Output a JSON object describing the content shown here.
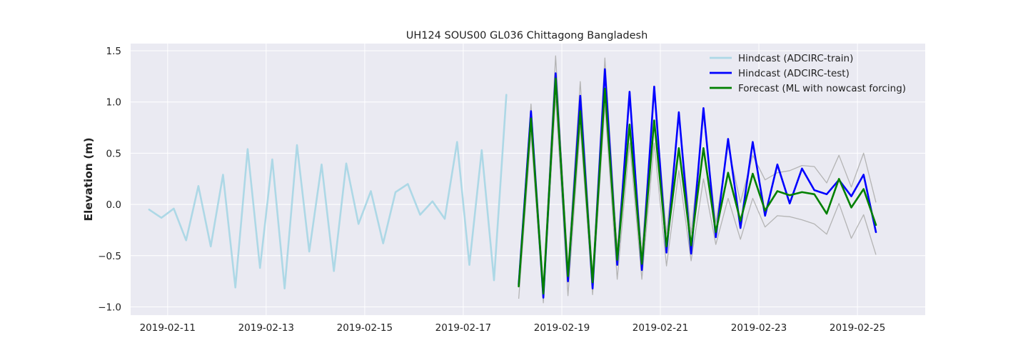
{
  "chart_data": {
    "type": "line",
    "title": "UH124 SOUS00 GL036 Chittagong Bangladesh",
    "xlabel": "",
    "ylabel": "Elevation (m)",
    "xlim": [
      "2019-02-10 06:00",
      "2019-02-26 09:00"
    ],
    "ylim": [
      -1.08,
      1.57
    ],
    "x_ticks": [
      "2019-02-11",
      "2019-02-13",
      "2019-02-15",
      "2019-02-17",
      "2019-02-19",
      "2019-02-21",
      "2019-02-23",
      "2019-02-25"
    ],
    "y_ticks": [
      -1.0,
      -0.5,
      0.0,
      0.5,
      1.0,
      1.5
    ],
    "y_tick_labels": [
      "−1.0",
      "−0.5",
      "0.0",
      "0.5",
      "1.0",
      "1.5"
    ],
    "grid": true,
    "legend_position": "top-right",
    "colors": {
      "plot_background": "#EAEAF2",
      "grid": "#FFFFFF",
      "text": "#222222"
    },
    "series": [
      {
        "name": "Hindcast (ADCIRC-train)",
        "color": "#ADD8E6",
        "x": [
          "2019-02-10 15:00",
          "2019-02-10 21:00",
          "2019-02-11 03:00",
          "2019-02-11 09:00",
          "2019-02-11 15:00",
          "2019-02-11 21:00",
          "2019-02-12 03:00",
          "2019-02-12 09:00",
          "2019-02-12 15:00",
          "2019-02-12 21:00",
          "2019-02-13 03:00",
          "2019-02-13 09:00",
          "2019-02-13 15:00",
          "2019-02-13 21:00",
          "2019-02-14 03:00",
          "2019-02-14 09:00",
          "2019-02-14 15:00",
          "2019-02-14 21:00",
          "2019-02-15 03:00",
          "2019-02-15 09:00",
          "2019-02-15 15:00",
          "2019-02-15 21:00",
          "2019-02-16 03:00",
          "2019-02-16 09:00",
          "2019-02-16 15:00",
          "2019-02-16 21:00",
          "2019-02-17 03:00",
          "2019-02-17 09:00",
          "2019-02-17 15:00",
          "2019-02-17 21:00"
        ],
        "values": [
          -0.05,
          -0.13,
          -0.04,
          -0.35,
          0.18,
          -0.41,
          0.29,
          -0.81,
          0.54,
          -0.62,
          0.44,
          -0.82,
          0.58,
          -0.46,
          0.39,
          -0.65,
          0.4,
          -0.19,
          0.13,
          -0.38,
          0.12,
          0.2,
          -0.1,
          0.03,
          -0.14,
          0.61,
          -0.59,
          0.53,
          -0.74,
          1.07
        ]
      },
      {
        "name": "Hindcast (ADCIRC-test)",
        "color": "#0000FF",
        "x": [
          "2019-02-18 03:00",
          "2019-02-18 09:00",
          "2019-02-18 15:00",
          "2019-02-18 21:00",
          "2019-02-19 03:00",
          "2019-02-19 09:00",
          "2019-02-19 15:00",
          "2019-02-19 21:00",
          "2019-02-20 03:00",
          "2019-02-20 09:00",
          "2019-02-20 15:00",
          "2019-02-20 21:00",
          "2019-02-21 03:00",
          "2019-02-21 09:00",
          "2019-02-21 15:00",
          "2019-02-21 21:00",
          "2019-02-22 03:00",
          "2019-02-22 09:00",
          "2019-02-22 15:00",
          "2019-02-22 21:00",
          "2019-02-23 03:00",
          "2019-02-23 09:00",
          "2019-02-23 15:00",
          "2019-02-23 21:00",
          "2019-02-24 03:00",
          "2019-02-24 09:00",
          "2019-02-24 15:00",
          "2019-02-24 21:00",
          "2019-02-25 03:00",
          "2019-02-25 09:00"
        ],
        "values": [
          -0.78,
          0.91,
          -0.91,
          1.28,
          -0.75,
          1.06,
          -0.82,
          1.32,
          -0.59,
          1.1,
          -0.64,
          1.15,
          -0.47,
          0.9,
          -0.48,
          0.94,
          -0.32,
          0.64,
          -0.23,
          0.61,
          -0.11,
          0.39,
          0.01,
          0.35,
          0.14,
          0.1,
          0.24,
          0.08,
          0.29,
          -0.27
        ]
      },
      {
        "name": "Forecast (ML with nowcast forcing)",
        "color": "#008000",
        "x": [
          "2019-02-18 03:00",
          "2019-02-18 09:00",
          "2019-02-18 15:00",
          "2019-02-18 21:00",
          "2019-02-19 03:00",
          "2019-02-19 09:00",
          "2019-02-19 15:00",
          "2019-02-19 21:00",
          "2019-02-20 03:00",
          "2019-02-20 09:00",
          "2019-02-20 15:00",
          "2019-02-20 21:00",
          "2019-02-21 03:00",
          "2019-02-21 09:00",
          "2019-02-21 15:00",
          "2019-02-21 21:00",
          "2019-02-22 03:00",
          "2019-02-22 09:00",
          "2019-02-22 15:00",
          "2019-02-22 21:00",
          "2019-02-23 03:00",
          "2019-02-23 09:00",
          "2019-02-23 15:00",
          "2019-02-23 21:00",
          "2019-02-24 03:00",
          "2019-02-24 09:00",
          "2019-02-24 15:00",
          "2019-02-24 21:00",
          "2019-02-25 03:00",
          "2019-02-25 09:00"
        ],
        "values": [
          -0.8,
          0.84,
          -0.87,
          1.23,
          -0.7,
          0.91,
          -0.76,
          1.13,
          -0.54,
          0.78,
          -0.58,
          0.82,
          -0.41,
          0.55,
          -0.4,
          0.55,
          -0.27,
          0.31,
          -0.16,
          0.3,
          -0.06,
          0.13,
          0.09,
          0.12,
          0.1,
          -0.09,
          0.25,
          -0.03,
          0.15,
          -0.2
        ]
      }
    ],
    "bands": [
      {
        "color": "#B4B4B4",
        "x": [
          "2019-02-18 03:00",
          "2019-02-18 09:00",
          "2019-02-18 15:00",
          "2019-02-18 21:00",
          "2019-02-19 03:00",
          "2019-02-19 09:00",
          "2019-02-19 15:00",
          "2019-02-19 21:00",
          "2019-02-20 03:00",
          "2019-02-20 09:00",
          "2019-02-20 15:00",
          "2019-02-20 21:00",
          "2019-02-21 03:00",
          "2019-02-21 09:00",
          "2019-02-21 15:00",
          "2019-02-21 21:00",
          "2019-02-22 03:00",
          "2019-02-22 09:00",
          "2019-02-22 15:00",
          "2019-02-22 21:00",
          "2019-02-23 03:00",
          "2019-02-23 09:00",
          "2019-02-23 15:00",
          "2019-02-23 21:00",
          "2019-02-24 03:00",
          "2019-02-24 09:00",
          "2019-02-24 15:00",
          "2019-02-24 21:00",
          "2019-02-25 03:00",
          "2019-02-25 09:00"
        ],
        "upper": [
          -0.74,
          0.98,
          -0.8,
          1.45,
          -0.62,
          1.2,
          -0.7,
          1.43,
          -0.44,
          1.05,
          -0.48,
          1.12,
          -0.29,
          0.88,
          -0.28,
          0.86,
          -0.18,
          0.57,
          0.02,
          0.48,
          0.24,
          0.31,
          0.33,
          0.38,
          0.37,
          0.21,
          0.48,
          0.17,
          0.5,
          0.02
        ],
        "lower": [
          -0.92,
          0.69,
          -0.96,
          1.05,
          -0.89,
          0.76,
          -0.88,
          0.97,
          -0.73,
          0.6,
          -0.73,
          0.6,
          -0.6,
          0.33,
          -0.55,
          0.25,
          -0.39,
          0.06,
          -0.34,
          0.06,
          -0.22,
          -0.11,
          -0.12,
          -0.15,
          -0.19,
          -0.29,
          0.01,
          -0.33,
          -0.1,
          -0.49
        ]
      }
    ]
  }
}
